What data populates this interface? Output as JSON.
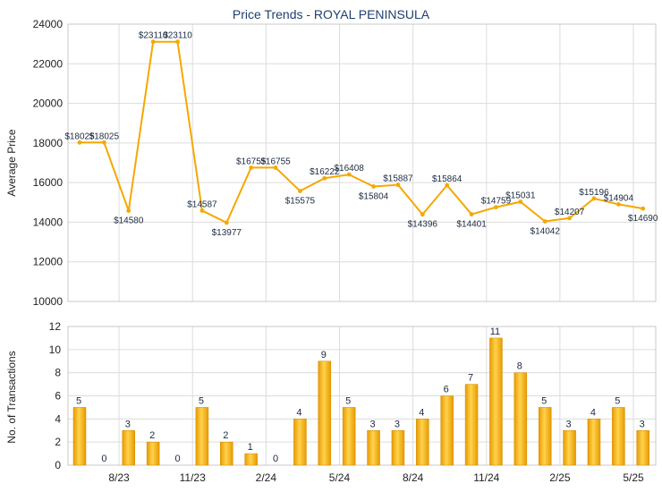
{
  "chart_data": [
    {
      "type": "line",
      "title": "Price Trends - ROYAL PENINSULA",
      "ylabel": "Average Price",
      "ylim": [
        10000,
        24000
      ],
      "yticks": [
        10000,
        12000,
        14000,
        16000,
        18000,
        20000,
        22000,
        24000
      ],
      "color": "#f5a800",
      "points": [
        {
          "x": 0,
          "y": 18025,
          "label": "$18025"
        },
        {
          "x": 1,
          "y": 18025,
          "label": "$18025"
        },
        {
          "x": 2,
          "y": 14580,
          "label": "$14580"
        },
        {
          "x": 3,
          "y": 23110,
          "label": "$23110"
        },
        {
          "x": 4,
          "y": 23110,
          "label": "$23110"
        },
        {
          "x": 5,
          "y": 14587,
          "label": "$14587"
        },
        {
          "x": 6,
          "y": 13977,
          "label": "$13977"
        },
        {
          "x": 7,
          "y": 16755,
          "label": "$16755"
        },
        {
          "x": 8,
          "y": 16755,
          "label": "$16755"
        },
        {
          "x": 9,
          "y": 15575,
          "label": "$15575"
        },
        {
          "x": 10,
          "y": 16222,
          "label": "$16222"
        },
        {
          "x": 11,
          "y": 16408,
          "label": "$16408"
        },
        {
          "x": 12,
          "y": 15804,
          "label": "$15804"
        },
        {
          "x": 13,
          "y": 15887,
          "label": "$15887"
        },
        {
          "x": 14,
          "y": 14396,
          "label": "$14396"
        },
        {
          "x": 15,
          "y": 15864,
          "label": "$15864"
        },
        {
          "x": 16,
          "y": 14401,
          "label": "$14401"
        },
        {
          "x": 17,
          "y": 14759,
          "label": "$14759"
        },
        {
          "x": 18,
          "y": 15031,
          "label": "$15031"
        },
        {
          "x": 19,
          "y": 14042,
          "label": "$14042"
        },
        {
          "x": 20,
          "y": 14207,
          "label": "$14207"
        },
        {
          "x": 21,
          "y": 15196,
          "label": "$15196"
        },
        {
          "x": 22,
          "y": 14904,
          "label": "$14904"
        },
        {
          "x": 23,
          "y": 14690,
          "label": "$14690"
        }
      ]
    },
    {
      "type": "bar",
      "ylabel": "No. of Transactions",
      "ylim": [
        0,
        12
      ],
      "yticks": [
        0,
        2,
        4,
        6,
        8,
        10,
        12
      ],
      "color": "#f5a800",
      "values": [
        5,
        0,
        3,
        2,
        0,
        5,
        2,
        1,
        0,
        4,
        9,
        5,
        3,
        3,
        4,
        6,
        7,
        11,
        8,
        5,
        3,
        4,
        5,
        3
      ],
      "xticks": [
        {
          "index": 2,
          "label": "8/23"
        },
        {
          "index": 5,
          "label": "11/23"
        },
        {
          "index": 8,
          "label": "2/24"
        },
        {
          "index": 11,
          "label": "5/24"
        },
        {
          "index": 14,
          "label": "8/24"
        },
        {
          "index": 17,
          "label": "11/24"
        },
        {
          "index": 20,
          "label": "2/25"
        },
        {
          "index": 23,
          "label": "5/25"
        }
      ]
    }
  ]
}
